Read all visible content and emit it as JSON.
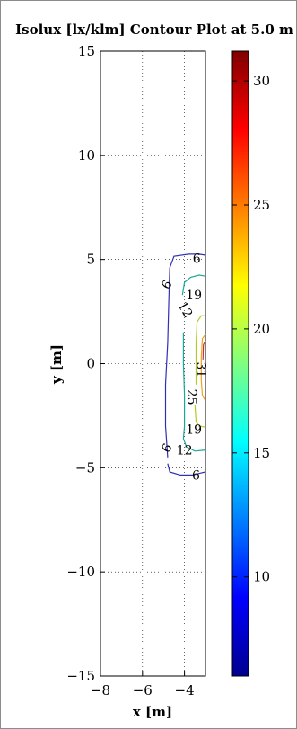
{
  "chart_data": {
    "type": "contour",
    "title": "Isolux [lx/klm] Contour Plot at 5.0 m",
    "xlabel": "x [m]",
    "ylabel": "y [m]",
    "xlim": [
      -8,
      -3
    ],
    "ylim": [
      -15,
      15
    ],
    "x_ticks": [
      -8,
      -6,
      -4
    ],
    "y_ticks": [
      -15,
      -10,
      -5,
      0,
      5,
      10,
      15
    ],
    "grid": true,
    "colormap": "jet",
    "colorbar": {
      "min": 6,
      "max": 31.2,
      "ticks": [
        10,
        15,
        20,
        25,
        30
      ]
    },
    "contours": [
      {
        "level": 6,
        "color": "#3030b4",
        "upper": [
          [
            -3.0,
            5.2
          ],
          [
            -3.3,
            5.25
          ],
          [
            -3.8,
            5.25
          ],
          [
            -4.5,
            5.15
          ],
          [
            -4.7,
            4.6
          ],
          [
            -4.75,
            3.0
          ],
          [
            -4.8,
            1.0
          ],
          [
            -4.9,
            -1.0
          ],
          [
            -4.9,
            -3.0
          ],
          [
            -4.8,
            -4.5
          ]
        ],
        "lower": [
          [
            -4.8,
            -4.8
          ],
          [
            -4.7,
            -5.2
          ],
          [
            -4.2,
            -5.35
          ],
          [
            -3.6,
            -5.35
          ],
          [
            -3.2,
            -5.25
          ],
          [
            -3.0,
            -5.2
          ]
        ]
      },
      {
        "level": 12,
        "color": "#1aa89b",
        "upper": [
          [
            -3.0,
            4.2
          ],
          [
            -3.3,
            4.25
          ],
          [
            -3.7,
            4.15
          ],
          [
            -4.0,
            3.9
          ],
          [
            -4.1,
            3.3
          ]
        ],
        "lower": [
          [
            -4.05,
            1.5
          ],
          [
            -4.05,
            0.0
          ],
          [
            -4.0,
            -1.5
          ],
          [
            -4.0,
            -3.0
          ],
          [
            -4.05,
            -3.6
          ],
          [
            -3.9,
            -4.0
          ],
          [
            -3.5,
            -4.2
          ],
          [
            -3.0,
            -4.15
          ]
        ]
      },
      {
        "level": 19,
        "color": "#b0cc20",
        "upper": [
          [
            -3.0,
            2.3
          ],
          [
            -3.2,
            2.3
          ],
          [
            -3.4,
            2.0
          ],
          [
            -3.45,
            1.0
          ],
          [
            -3.45,
            -1.0
          ]
        ],
        "lower": [
          [
            -3.5,
            -2.0
          ],
          [
            -3.45,
            -2.8
          ],
          [
            -3.3,
            -3.0
          ],
          [
            -3.0,
            -3.05
          ]
        ]
      },
      {
        "level": 25,
        "color": "#f0a020",
        "path": [
          [
            -3.0,
            1.4
          ],
          [
            -3.15,
            1.2
          ],
          [
            -3.2,
            0.3
          ],
          [
            -3.2,
            -0.8
          ],
          [
            -3.15,
            -1.5
          ],
          [
            -3.05,
            -1.7
          ],
          [
            -3.0,
            -1.7
          ]
        ]
      },
      {
        "level": 31,
        "color": "#c0392b",
        "path": [
          [
            -3.0,
            1.1
          ],
          [
            -3.1,
            0.9
          ],
          [
            -3.12,
            0.2
          ]
        ]
      }
    ],
    "contour_labels": [
      {
        "text": "6",
        "x": -3.42,
        "y": 5.05,
        "rotate": 0
      },
      {
        "text": "6",
        "x": -4.85,
        "y": 3.8,
        "rotate": -60
      },
      {
        "text": "19",
        "x": -3.55,
        "y": 3.3,
        "rotate": 0
      },
      {
        "text": "12",
        "x": -3.95,
        "y": 2.6,
        "rotate": 60
      },
      {
        "text": "31",
        "x": -3.2,
        "y": -0.3,
        "rotate": 90
      },
      {
        "text": "25",
        "x": -3.65,
        "y": -1.6,
        "rotate": 90
      },
      {
        "text": "19",
        "x": -3.55,
        "y": -3.15,
        "rotate": 0
      },
      {
        "text": "12",
        "x": -4.0,
        "y": -4.15,
        "rotate": 0
      },
      {
        "text": "6",
        "x": -4.85,
        "y": -4.05,
        "rotate": -60
      },
      {
        "text": "6",
        "x": -3.45,
        "y": -5.35,
        "rotate": 0
      }
    ]
  }
}
